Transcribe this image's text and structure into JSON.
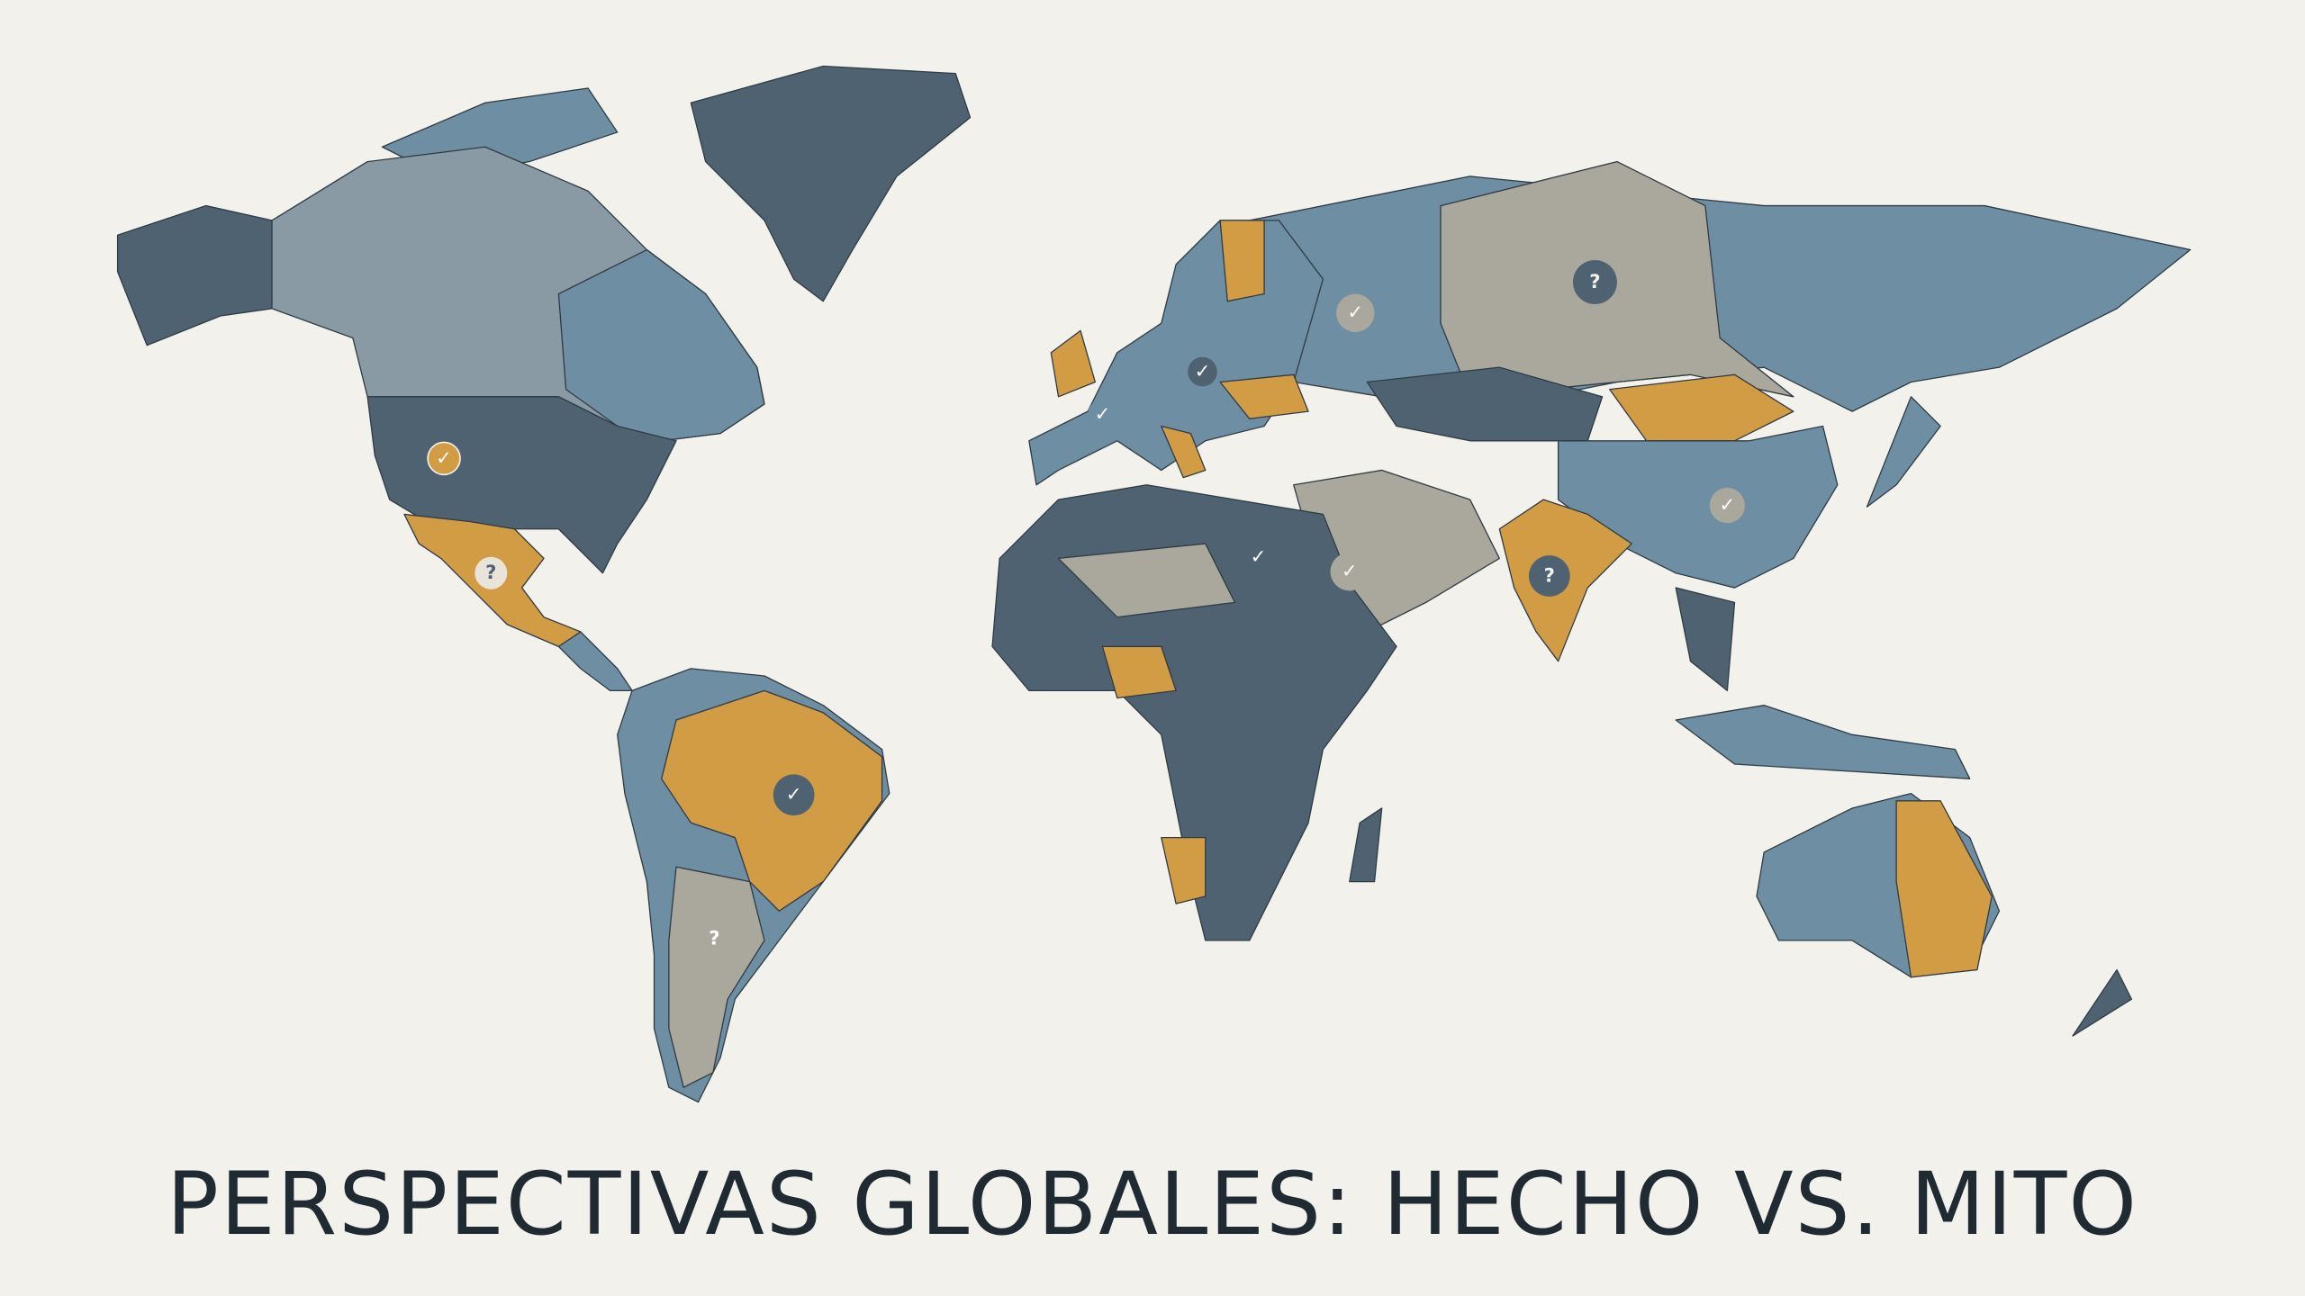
{
  "title": "PERSPECTIVAS GLOBALES: HECHO VS. MITO",
  "palette": {
    "background": "#f2f1ec",
    "dark_slate": "#4f6272",
    "steel_blue": "#6e8ea3",
    "warm_gray": "#aaa79d",
    "gold": "#d29c45",
    "title": "#1f2a33"
  },
  "markers": [
    {
      "region": "United States",
      "icon": "check-icon",
      "glyph": "✓"
    },
    {
      "region": "Mexico",
      "icon": "question-icon",
      "glyph": "?"
    },
    {
      "region": "Western Europe",
      "icon": "check-icon",
      "glyph": "✓"
    },
    {
      "region": "Central Europe",
      "icon": "check-icon",
      "glyph": "✓"
    },
    {
      "region": "Western Russia",
      "icon": "check-icon",
      "glyph": "✓"
    },
    {
      "region": "Siberia",
      "icon": "question-icon",
      "glyph": "?"
    },
    {
      "region": "China",
      "icon": "check-icon",
      "glyph": "✓"
    },
    {
      "region": "India",
      "icon": "question-icon",
      "glyph": "?"
    },
    {
      "region": "Egypt",
      "icon": "check-icon",
      "glyph": "✓"
    },
    {
      "region": "Arabian Peninsula",
      "icon": "check-icon",
      "glyph": "✓"
    },
    {
      "region": "Brazil",
      "icon": "check-icon",
      "glyph": "✓"
    },
    {
      "region": "Argentina",
      "icon": "question-icon",
      "glyph": "?"
    }
  ]
}
